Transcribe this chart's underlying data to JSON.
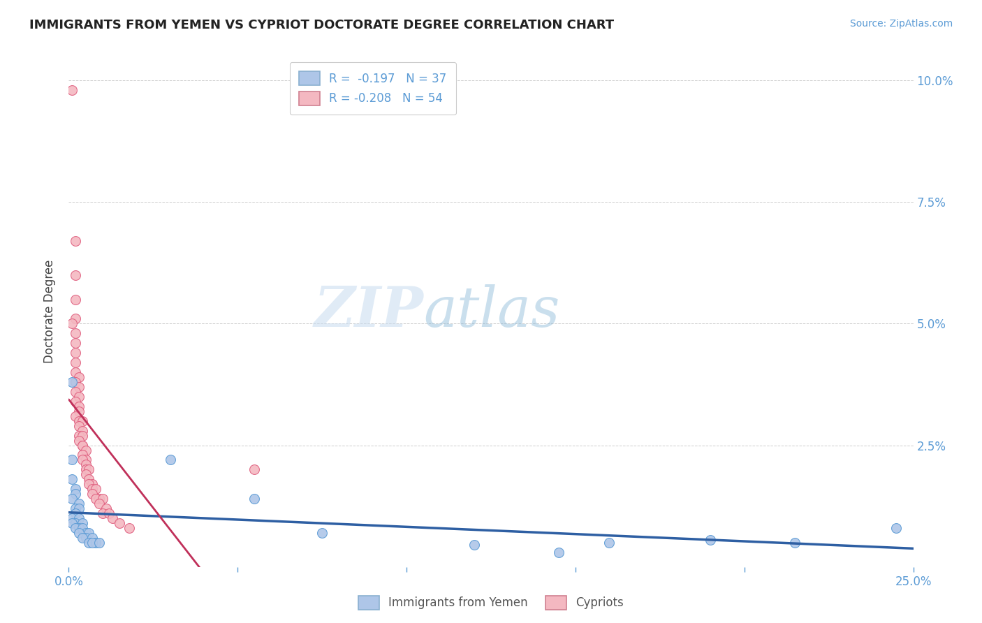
{
  "title": "IMMIGRANTS FROM YEMEN VS CYPRIOT DOCTORATE DEGREE CORRELATION CHART",
  "source_text": "Source: ZipAtlas.com",
  "ylabel": "Doctorate Degree",
  "xlim": [
    0.0,
    0.25
  ],
  "ylim": [
    0.0,
    0.105
  ],
  "ytick_labels_right": [
    "10.0%",
    "7.5%",
    "5.0%",
    "2.5%"
  ],
  "ytick_vals_right": [
    0.1,
    0.075,
    0.05,
    0.025
  ],
  "legend_r1": "R =  -0.197   N = 37",
  "legend_r2": "R = -0.208   N = 54",
  "legend_color1": "#aec6e8",
  "legend_color2": "#f4b8c1",
  "watermark_zip": "ZIP",
  "watermark_atlas": "atlas",
  "title_fontsize": 13,
  "axis_color": "#5b9bd5",
  "background_color": "#ffffff",
  "grid_color": "#cccccc",
  "yemen_color": "#aec6e8",
  "cypriot_color": "#f4b8c1",
  "yemen_edge_color": "#5b9bd5",
  "cypriot_edge_color": "#e06080",
  "yemen_line_color": "#2e5fa3",
  "cypriot_line_color": "#c0305a",
  "cypriot_dashed_color": "#e8a0b0",
  "point_size": 100,
  "yemen_points": [
    [
      0.001,
      0.038
    ],
    [
      0.001,
      0.022
    ],
    [
      0.001,
      0.018
    ],
    [
      0.002,
      0.016
    ],
    [
      0.002,
      0.015
    ],
    [
      0.001,
      0.014
    ],
    [
      0.003,
      0.013
    ],
    [
      0.002,
      0.012
    ],
    [
      0.003,
      0.012
    ],
    [
      0.002,
      0.011
    ],
    [
      0.001,
      0.01
    ],
    [
      0.003,
      0.01
    ],
    [
      0.002,
      0.009
    ],
    [
      0.001,
      0.009
    ],
    [
      0.004,
      0.009
    ],
    [
      0.003,
      0.008
    ],
    [
      0.002,
      0.008
    ],
    [
      0.004,
      0.008
    ],
    [
      0.005,
      0.007
    ],
    [
      0.003,
      0.007
    ],
    [
      0.006,
      0.007
    ],
    [
      0.005,
      0.006
    ],
    [
      0.004,
      0.006
    ],
    [
      0.007,
      0.006
    ],
    [
      0.006,
      0.005
    ],
    [
      0.008,
      0.005
    ],
    [
      0.007,
      0.005
    ],
    [
      0.009,
      0.005
    ],
    [
      0.03,
      0.022
    ],
    [
      0.055,
      0.014
    ],
    [
      0.075,
      0.007
    ],
    [
      0.12,
      0.0045
    ],
    [
      0.145,
      0.003
    ],
    [
      0.16,
      0.005
    ],
    [
      0.19,
      0.0055
    ],
    [
      0.215,
      0.005
    ],
    [
      0.245,
      0.008
    ]
  ],
  "cypriot_points": [
    [
      0.001,
      0.098
    ],
    [
      0.002,
      0.067
    ],
    [
      0.002,
      0.06
    ],
    [
      0.002,
      0.055
    ],
    [
      0.002,
      0.051
    ],
    [
      0.001,
      0.05
    ],
    [
      0.002,
      0.048
    ],
    [
      0.002,
      0.046
    ],
    [
      0.002,
      0.044
    ],
    [
      0.002,
      0.042
    ],
    [
      0.002,
      0.04
    ],
    [
      0.003,
      0.039
    ],
    [
      0.002,
      0.038
    ],
    [
      0.003,
      0.037
    ],
    [
      0.002,
      0.036
    ],
    [
      0.003,
      0.035
    ],
    [
      0.002,
      0.034
    ],
    [
      0.003,
      0.033
    ],
    [
      0.003,
      0.032
    ],
    [
      0.002,
      0.031
    ],
    [
      0.003,
      0.03
    ],
    [
      0.004,
      0.03
    ],
    [
      0.003,
      0.029
    ],
    [
      0.004,
      0.028
    ],
    [
      0.003,
      0.027
    ],
    [
      0.004,
      0.027
    ],
    [
      0.003,
      0.026
    ],
    [
      0.004,
      0.025
    ],
    [
      0.004,
      0.025
    ],
    [
      0.005,
      0.024
    ],
    [
      0.004,
      0.023
    ],
    [
      0.005,
      0.022
    ],
    [
      0.004,
      0.022
    ],
    [
      0.005,
      0.021
    ],
    [
      0.005,
      0.02
    ],
    [
      0.006,
      0.02
    ],
    [
      0.005,
      0.019
    ],
    [
      0.006,
      0.018
    ],
    [
      0.007,
      0.017
    ],
    [
      0.006,
      0.017
    ],
    [
      0.007,
      0.016
    ],
    [
      0.008,
      0.016
    ],
    [
      0.007,
      0.015
    ],
    [
      0.009,
      0.014
    ],
    [
      0.008,
      0.014
    ],
    [
      0.01,
      0.014
    ],
    [
      0.009,
      0.013
    ],
    [
      0.011,
      0.012
    ],
    [
      0.01,
      0.011
    ],
    [
      0.012,
      0.011
    ],
    [
      0.013,
      0.01
    ],
    [
      0.015,
      0.009
    ],
    [
      0.018,
      0.008
    ],
    [
      0.055,
      0.02
    ]
  ]
}
